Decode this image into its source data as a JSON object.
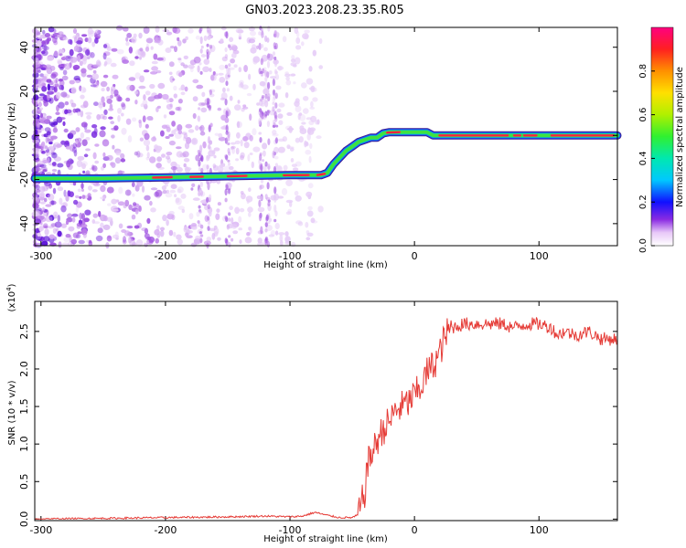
{
  "title": "GN03.2023.208.23.35.R05",
  "chart_data": [
    {
      "type": "heatmap",
      "xlabel": "Height of straight line (km)",
      "ylabel": "Frequency (Hz)",
      "xlim": [
        -305,
        163
      ],
      "ylim": [
        -50,
        49
      ],
      "xticks": [
        -300,
        -200,
        -100,
        0,
        100
      ],
      "yticks": [
        -40,
        -20,
        0,
        20,
        40
      ],
      "track": {
        "x": [
          -305,
          -250,
          -200,
          -150,
          -100,
          -75,
          -70,
          -65,
          -60,
          -55,
          -50,
          -45,
          -40,
          -35,
          -30,
          -25,
          -20,
          -10,
          0,
          10,
          15,
          20,
          50,
          100,
          163
        ],
        "y": [
          -19.5,
          -19.5,
          -19,
          -18.5,
          -18,
          -18,
          -17,
          -13,
          -10,
          -7,
          -5,
          -3,
          -2,
          -1,
          -1,
          1,
          1.5,
          1.5,
          1.5,
          1.5,
          0,
          0,
          0,
          0,
          0
        ]
      },
      "colorbar": {
        "label": "Normalized spectral amplitude",
        "range": [
          0.0,
          1.0
        ],
        "ticks": [
          0.0,
          0.2,
          0.4,
          0.6,
          0.8
        ]
      }
    },
    {
      "type": "line",
      "xlabel": "Height of straight line (km)",
      "ylabel": "SNR (10 * v/v)",
      "yscale_note": "(x10",
      "yscale_exp": "4",
      "y_multiplier": 10000,
      "xlim": [
        -305,
        163
      ],
      "ylim": [
        -0.02,
        2.9
      ],
      "xticks": [
        -300,
        -200,
        -100,
        0,
        100
      ],
      "yticks": [
        0.0,
        0.5,
        1.0,
        1.5,
        2.0,
        2.5
      ],
      "series": [
        {
          "color": "#e53a35",
          "x": [
            -305,
            -250,
            -200,
            -150,
            -120,
            -100,
            -90,
            -80,
            -70,
            -60,
            -50,
            -45,
            -40,
            -38,
            -35,
            -32,
            -30,
            -25,
            -20,
            -15,
            -10,
            -5,
            0,
            5,
            10,
            15,
            20,
            25,
            30,
            40,
            50,
            60,
            70,
            80,
            90,
            100,
            110,
            115,
            120,
            130,
            140,
            150,
            163
          ],
          "y": [
            0.0,
            0.01,
            0.02,
            0.03,
            0.04,
            0.03,
            0.04,
            0.09,
            0.05,
            0.02,
            0.02,
            0.06,
            0.35,
            0.7,
            0.85,
            0.95,
            1.05,
            1.2,
            1.3,
            1.45,
            1.5,
            1.55,
            1.65,
            1.75,
            1.95,
            2.05,
            2.2,
            2.45,
            2.55,
            2.6,
            2.6,
            2.6,
            2.6,
            2.55,
            2.6,
            2.6,
            2.55,
            2.45,
            2.5,
            2.45,
            2.5,
            2.4,
            2.4
          ]
        }
      ]
    }
  ]
}
